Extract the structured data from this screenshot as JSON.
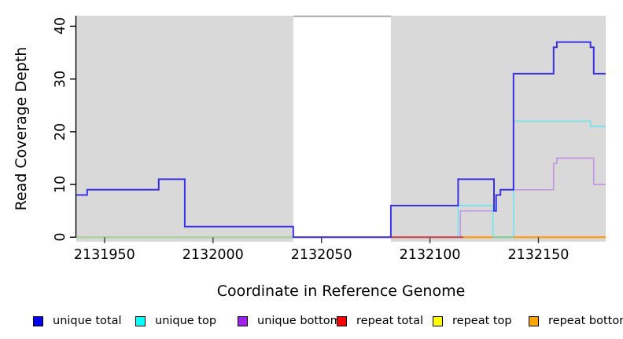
{
  "chart_data": {
    "type": "line",
    "subtype": "step-coverage",
    "title": "",
    "xlabel": "Coordinate in Reference Genome",
    "ylabel": "Read Coverage Depth",
    "xlim": [
      2131937,
      2132181
    ],
    "ylim": [
      -0.85,
      42
    ],
    "grid": false,
    "legend_position": "bottom",
    "x_ticks": [
      2131950,
      2132000,
      2132050,
      2132100,
      2132150
    ],
    "x_tick_labels": [
      "2131950",
      "2132000",
      "2132050",
      "2132100",
      "2132150"
    ],
    "y_ticks": [
      0,
      10,
      20,
      30,
      40
    ],
    "y_tick_labels": [
      "0",
      "10",
      "20",
      "30",
      "40"
    ],
    "panel_color": "#d9d9d9",
    "no_data_region": {
      "x_start": 2132037,
      "x_end": 2132082,
      "color": "#ffffff",
      "top_border_color": "#a8a8a8"
    },
    "series": [
      {
        "name": "unique total",
        "legend_color": "#0000EE",
        "line_color": "#3b31e4",
        "line_width": 2,
        "steps": [
          [
            2131937,
            8
          ],
          [
            2131942,
            9
          ],
          [
            2131975,
            11
          ],
          [
            2131987,
            2
          ],
          [
            2132037,
            0
          ],
          [
            2132082,
            6
          ],
          [
            2132113,
            11
          ],
          [
            2132129.5,
            5
          ],
          [
            2132130.5,
            8
          ],
          [
            2132132.5,
            9
          ],
          [
            2132138.5,
            31
          ],
          [
            2132157,
            36
          ],
          [
            2132158.5,
            37
          ],
          [
            2132174,
            36
          ],
          [
            2132175.5,
            31
          ],
          [
            2132181,
            31
          ]
        ]
      },
      {
        "name": "unique top",
        "legend_color": "#00FFFF",
        "line_color": "#74e3ea",
        "line_width": 1.7,
        "steps": [
          [
            2131937,
            0
          ],
          [
            2132113,
            6
          ],
          [
            2132129,
            0
          ],
          [
            2132138.5,
            22
          ],
          [
            2132174,
            21
          ],
          [
            2132181,
            21
          ]
        ]
      },
      {
        "name": "unique bottom",
        "legend_color": "#A020F0",
        "line_color": "#c498e3",
        "line_width": 1.7,
        "steps": [
          [
            2131937,
            0
          ],
          [
            2132114,
            5
          ],
          [
            2132130.5,
            8
          ],
          [
            2132132.5,
            9
          ],
          [
            2132157,
            14
          ],
          [
            2132158.5,
            15
          ],
          [
            2132175.5,
            10
          ],
          [
            2132181,
            10
          ]
        ]
      },
      {
        "name": "repeat total",
        "legend_color": "#FF0000",
        "line_color": "#cc4157",
        "line_width": 1.7,
        "steps": [
          [
            2131937,
            0
          ],
          [
            2132181,
            0
          ]
        ]
      },
      {
        "name": "repeat top",
        "legend_color": "#FFFF00",
        "line_color": "#e6e67c",
        "line_width": 1.7,
        "steps": [
          [
            2131937,
            0
          ],
          [
            2132181,
            0
          ]
        ]
      },
      {
        "name": "repeat bottom",
        "legend_color": "#FFA500",
        "line_color": "#ff9d12",
        "line_width": 2,
        "steps": [
          [
            2131937,
            0
          ],
          [
            2132181,
            0
          ]
        ]
      }
    ],
    "baseline_visible_segments": [
      {
        "x_start": 2131937,
        "x_end": 2132037,
        "color": "#a4d7a4"
      },
      {
        "x_start": 2132082,
        "x_end": 2132115.5,
        "color": "#cc4157"
      },
      {
        "x_start": 2132115.5,
        "x_end": 2132129,
        "color": "#ff9d12"
      },
      {
        "x_start": 2132129,
        "x_end": 2132138.5,
        "color": "#79d2a6"
      },
      {
        "x_start": 2132138.5,
        "x_end": 2132181,
        "color": "#ff9d12"
      }
    ]
  },
  "legend": {
    "items": [
      {
        "label": "unique total",
        "color": "#0000EE"
      },
      {
        "label": "unique top",
        "color": "#00FFFF"
      },
      {
        "label": "unique bottom",
        "color": "#A020F0"
      },
      {
        "label": "repeat total",
        "color": "#FF0000"
      },
      {
        "label": "repeat top",
        "color": "#FFFF00"
      },
      {
        "label": "repeat bottom",
        "color": "#FFA500"
      }
    ]
  }
}
